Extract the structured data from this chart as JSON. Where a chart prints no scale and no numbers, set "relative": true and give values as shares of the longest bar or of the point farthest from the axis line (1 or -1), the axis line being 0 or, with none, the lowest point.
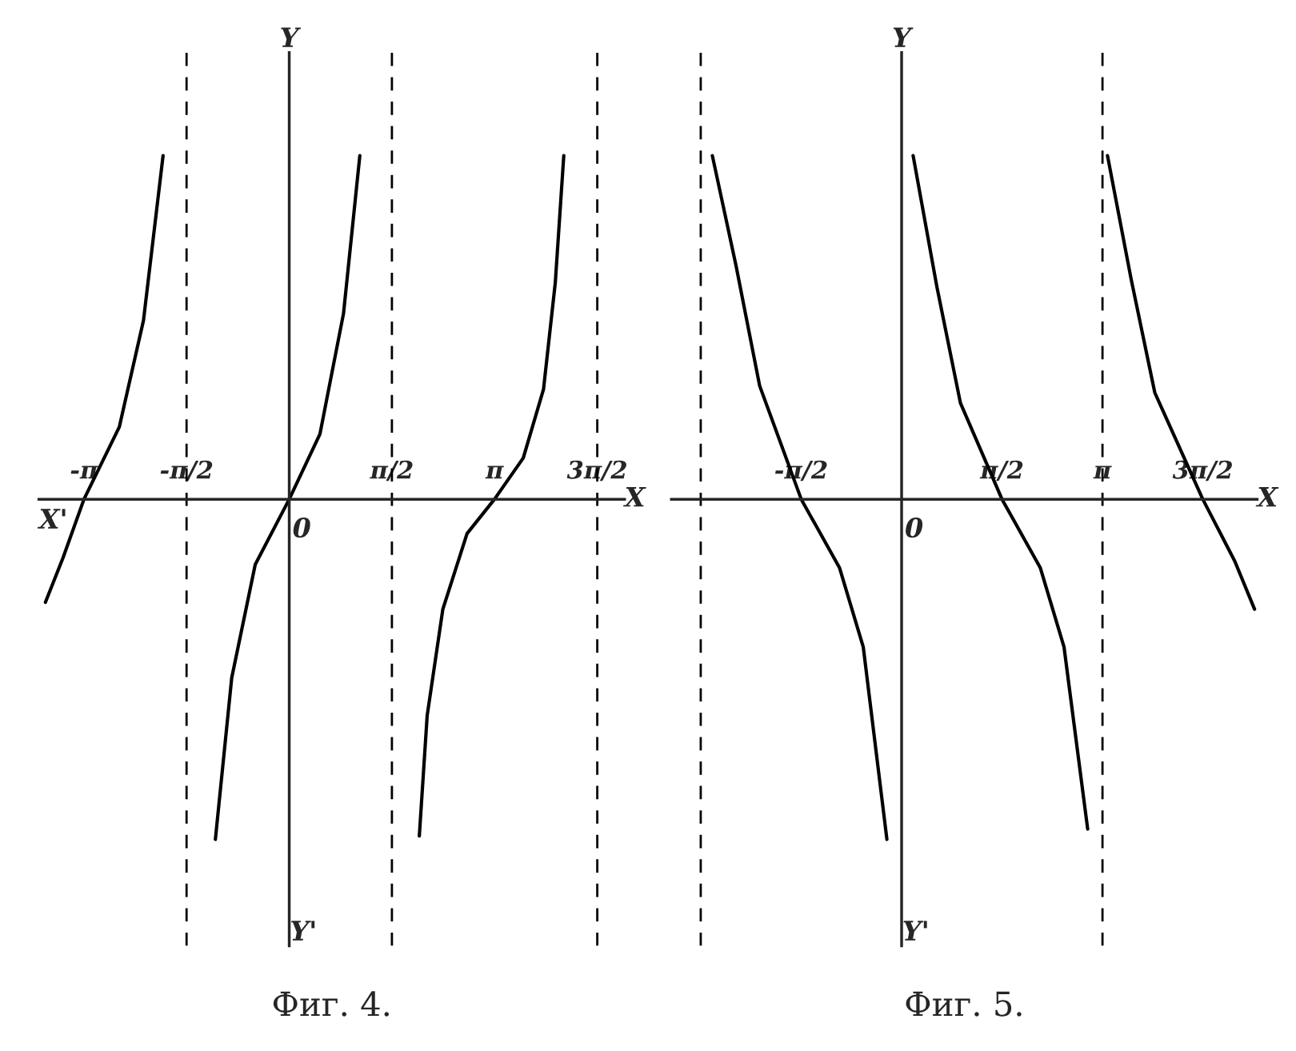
{
  "chart_data": [
    {
      "type": "line",
      "title": "Фиг. 4.",
      "xlabel": "X",
      "ylabel": "Y",
      "relative": true,
      "tick_labels": "x",
      "line_style": "solid",
      "xlim": [
        -3.83,
        5.13
      ],
      "xticks": [
        {
          "value": -3.1416,
          "label": "-π"
        },
        {
          "value": -1.5708,
          "label": "-π/2"
        },
        {
          "value": 1.5708,
          "label": "π/2"
        },
        {
          "value": 3.1416,
          "label": "π"
        },
        {
          "value": 4.7124,
          "label": "3π/2"
        }
      ],
      "ref_lines": [
        {
          "axis": "x",
          "value": -1.5708,
          "line_style": "dashed",
          "color": "#000000"
        },
        {
          "axis": "x",
          "value": 1.5708,
          "line_style": "dashed",
          "color": "#000000"
        },
        {
          "axis": "x",
          "value": 4.7124,
          "line_style": "dashed",
          "color": "#000000"
        }
      ],
      "annotations": [
        "X'",
        "Y'",
        "0"
      ],
      "series": [
        {
          "color": "#000000",
          "x": [
            -3.73,
            -3.46,
            -3.14,
            -2.6,
            -2.23,
            -1.93
          ],
          "values": [
            -0.3,
            -0.17,
            0,
            0.21,
            0.52,
            1.0
          ]
        },
        {
          "color": "#000000",
          "x": [
            -1.13,
            -0.88,
            -0.52,
            0,
            0.47,
            0.83,
            1.08
          ],
          "values": [
            -0.99,
            -0.52,
            -0.19,
            0,
            0.19,
            0.54,
            1.0
          ]
        },
        {
          "color": "#000000",
          "x": [
            1.99,
            2.11,
            2.35,
            2.72,
            3.14,
            3.58,
            3.89,
            4.07,
            4.2
          ],
          "values": [
            -0.98,
            -0.63,
            -0.32,
            -0.1,
            0,
            0.12,
            0.32,
            0.63,
            1.0
          ]
        }
      ]
    },
    {
      "type": "line",
      "title": "Фиг. 5.",
      "xlabel": "X",
      "ylabel": "Y",
      "relative": true,
      "tick_labels": "x",
      "line_style": "solid",
      "xlim": [
        -3.6,
        5.56
      ],
      "xticks": [
        {
          "value": -1.5708,
          "label": "-π/2"
        },
        {
          "value": 1.5708,
          "label": "π/2"
        },
        {
          "value": 3.1416,
          "label": "π"
        },
        {
          "value": 4.7124,
          "label": "3π/2"
        }
      ],
      "ref_lines": [
        {
          "axis": "x",
          "value": -3.1416,
          "line_style": "dashed",
          "color": "#000000"
        },
        {
          "axis": "x",
          "value": 3.1416,
          "line_style": "dashed",
          "color": "#000000"
        }
      ],
      "annotations": [
        "Y'",
        "0"
      ],
      "series": [
        {
          "color": "#000000",
          "x": [
            -2.96,
            -2.59,
            -2.22,
            -1.57,
            -0.97,
            -0.6,
            -0.23
          ],
          "values": [
            1.0,
            0.68,
            0.33,
            0,
            -0.2,
            -0.43,
            -0.99
          ]
        },
        {
          "color": "#000000",
          "x": [
            0.18,
            0.55,
            0.92,
            1.57,
            2.17,
            2.54,
            2.91
          ],
          "values": [
            1.0,
            0.62,
            0.28,
            0,
            -0.2,
            -0.43,
            -0.96
          ]
        },
        {
          "color": "#000000",
          "x": [
            3.22,
            3.59,
            3.96,
            4.71,
            5.21,
            5.52
          ],
          "values": [
            1.0,
            0.64,
            0.31,
            0,
            -0.18,
            -0.32
          ]
        }
      ]
    }
  ]
}
